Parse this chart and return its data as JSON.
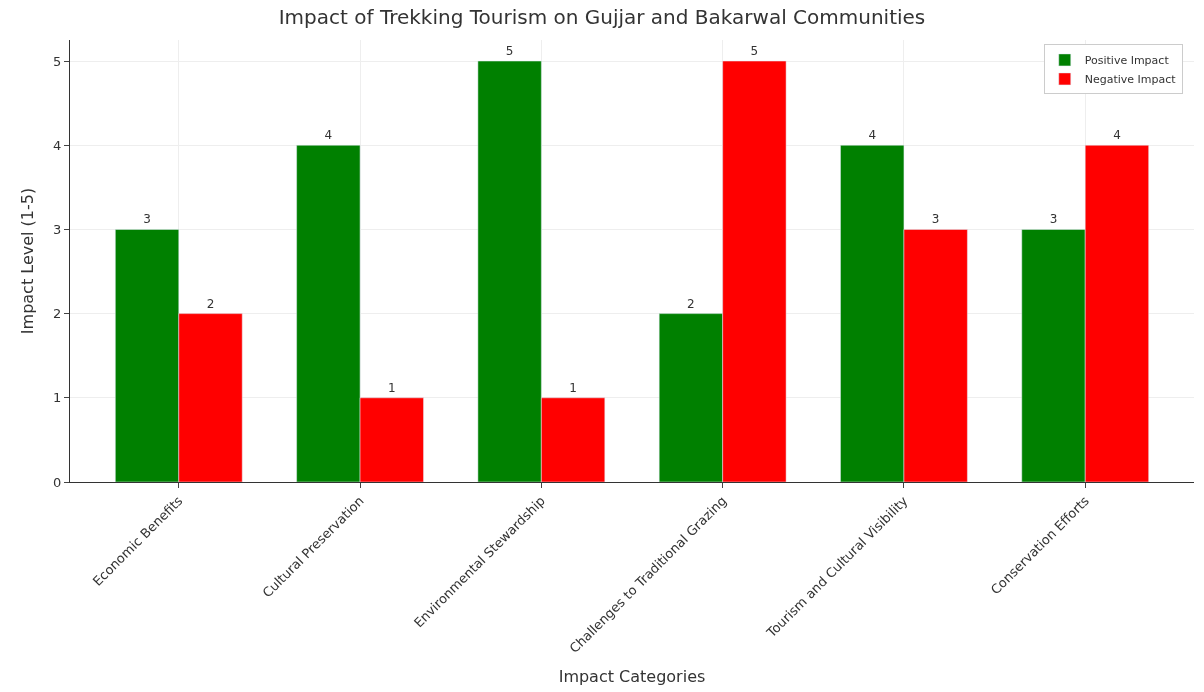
{
  "chart_data": {
    "type": "bar",
    "title": "Impact of Trekking Tourism on Gujjar and Bakarwal Communities",
    "xlabel": "Impact Categories",
    "ylabel": "Impact Level (1-5)",
    "categories": [
      "Economic Benefits",
      "Cultural Preservation",
      "Environmental Stewardship",
      "Challenges to Traditional Grazing",
      "Tourism and Cultural Visibility",
      "Conservation Efforts"
    ],
    "series": [
      {
        "name": "Positive Impact",
        "color": "#008000",
        "values": [
          3,
          4,
          5,
          2,
          4,
          3
        ]
      },
      {
        "name": "Negative Impact",
        "color": "#ff0000",
        "values": [
          2,
          1,
          1,
          5,
          3,
          4
        ]
      }
    ],
    "ylim": [
      0,
      5.25
    ],
    "yticks": [
      0,
      1,
      2,
      3,
      4,
      5
    ],
    "grid": true,
    "legend": "top right",
    "data_labels": true
  }
}
